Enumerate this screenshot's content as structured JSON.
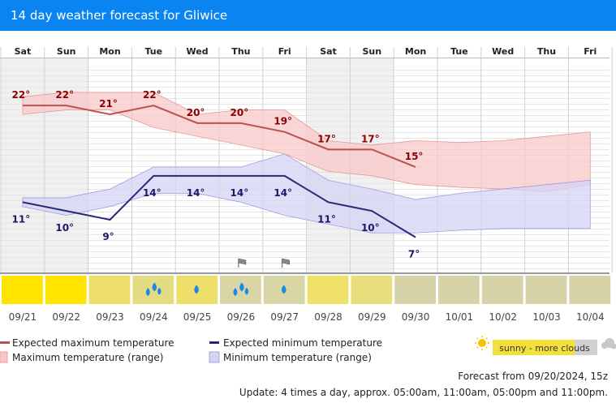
{
  "header": {
    "title": "14 day weather forecast for Gliwice"
  },
  "chart_data": {
    "type": "line",
    "days": [
      "Sat",
      "Sun",
      "Mon",
      "Tue",
      "Wed",
      "Thu",
      "Fri",
      "Sat",
      "Sun",
      "Mon",
      "Tue",
      "Wed",
      "Thu",
      "Fri"
    ],
    "dates": [
      "09/21",
      "09/22",
      "09/23",
      "09/24",
      "09/25",
      "09/26",
      "09/27",
      "09/28",
      "09/29",
      "09/30",
      "10/01",
      "10/02",
      "10/03",
      "10/04"
    ],
    "weekend_days": [
      0,
      1,
      7,
      8
    ],
    "ylim": [
      3,
      27
    ],
    "series": [
      {
        "name": "Expected maximum temperature",
        "color": "#c0504d",
        "values": [
          22,
          22,
          21,
          22,
          20,
          20,
          19,
          17,
          17,
          15,
          null,
          null,
          null,
          null
        ],
        "labels": [
          "22°",
          "22°",
          "21°",
          "22°",
          "20°",
          "20°",
          "19°",
          "17°",
          "17°",
          "15°",
          "",
          "",
          "",
          ""
        ]
      },
      {
        "name": "Expected minimum temperature",
        "color": "#28287a",
        "values": [
          11,
          10,
          9,
          14,
          14,
          14,
          14,
          11,
          10,
          7,
          null,
          null,
          null,
          null
        ],
        "labels": [
          "11°",
          "10°",
          "9°",
          "14°",
          "14°",
          "14°",
          "14°",
          "11°",
          "10°",
          "7°",
          "",
          "",
          "",
          ""
        ]
      }
    ],
    "max_range": {
      "name": "Maximum temperature (range)",
      "low": [
        21,
        21.5,
        21.5,
        19.5,
        18.5,
        17.5,
        16.5,
        14.5,
        14,
        13,
        12.7,
        12.5,
        12.2,
        13
      ],
      "high": [
        23,
        23.5,
        23.5,
        23.5,
        21,
        21.5,
        21.5,
        18,
        17.5,
        18,
        17.8,
        18,
        18.5,
        19
      ]
    },
    "min_range": {
      "name": "Minimum temperature (range)",
      "low": [
        10.5,
        9.5,
        10.5,
        12,
        12,
        11,
        9.5,
        8.5,
        7.5,
        7.5,
        7.8,
        8,
        8,
        8
      ],
      "high": [
        11.5,
        11.5,
        12.5,
        15,
        15,
        15,
        16.5,
        13.5,
        12.5,
        11.3,
        12,
        12.5,
        13,
        13.5
      ]
    },
    "weather": [
      {
        "color": "#ffe400",
        "drops": 0,
        "wind": false
      },
      {
        "color": "#ffe400",
        "drops": 0,
        "wind": false
      },
      {
        "color": "#eedf6a",
        "drops": 0,
        "wind": false
      },
      {
        "color": "#e4dc82",
        "drops": 3,
        "wind": false
      },
      {
        "color": "#eedf6a",
        "drops": 1,
        "wind": false
      },
      {
        "color": "#d9d6a5",
        "drops": 3,
        "wind": true
      },
      {
        "color": "#d9d6a5",
        "drops": 1,
        "wind": true
      },
      {
        "color": "#efe06a",
        "drops": 0,
        "wind": false
      },
      {
        "color": "#e9de7c",
        "drops": 0,
        "wind": false
      },
      {
        "color": "#d6d3a8",
        "drops": 0,
        "wind": false
      },
      {
        "color": "#d6d3a8",
        "drops": 0,
        "wind": false
      },
      {
        "color": "#d6d3a8",
        "drops": 0,
        "wind": false
      },
      {
        "color": "#d6d3a8",
        "drops": 0,
        "wind": false
      },
      {
        "color": "#d6d3a8",
        "drops": 0,
        "wind": false
      }
    ]
  },
  "legend": {
    "max_expected": "Expected maximum temperature",
    "min_expected": "Expected minimum temperature",
    "max_range": "Maximum temperature (range)",
    "min_range": "Minimum temperature (range)",
    "sun_badge": "sunny - more clouds"
  },
  "footer": {
    "forecast_from": "Forecast from 09/20/2024, 15z",
    "update": "Update: 4 times a day, approx. 05:00am, 11:00am, 05:00pm and 11:00pm."
  },
  "colors": {
    "header": "#0a84f0",
    "max_line": "#c0504d",
    "max_fill": "#f8c8c8",
    "min_line": "#28287a",
    "min_fill": "#d4d4f4",
    "max_label": "#8b0000",
    "min_label": "#1a1a66",
    "drop": "#1e88e5"
  }
}
